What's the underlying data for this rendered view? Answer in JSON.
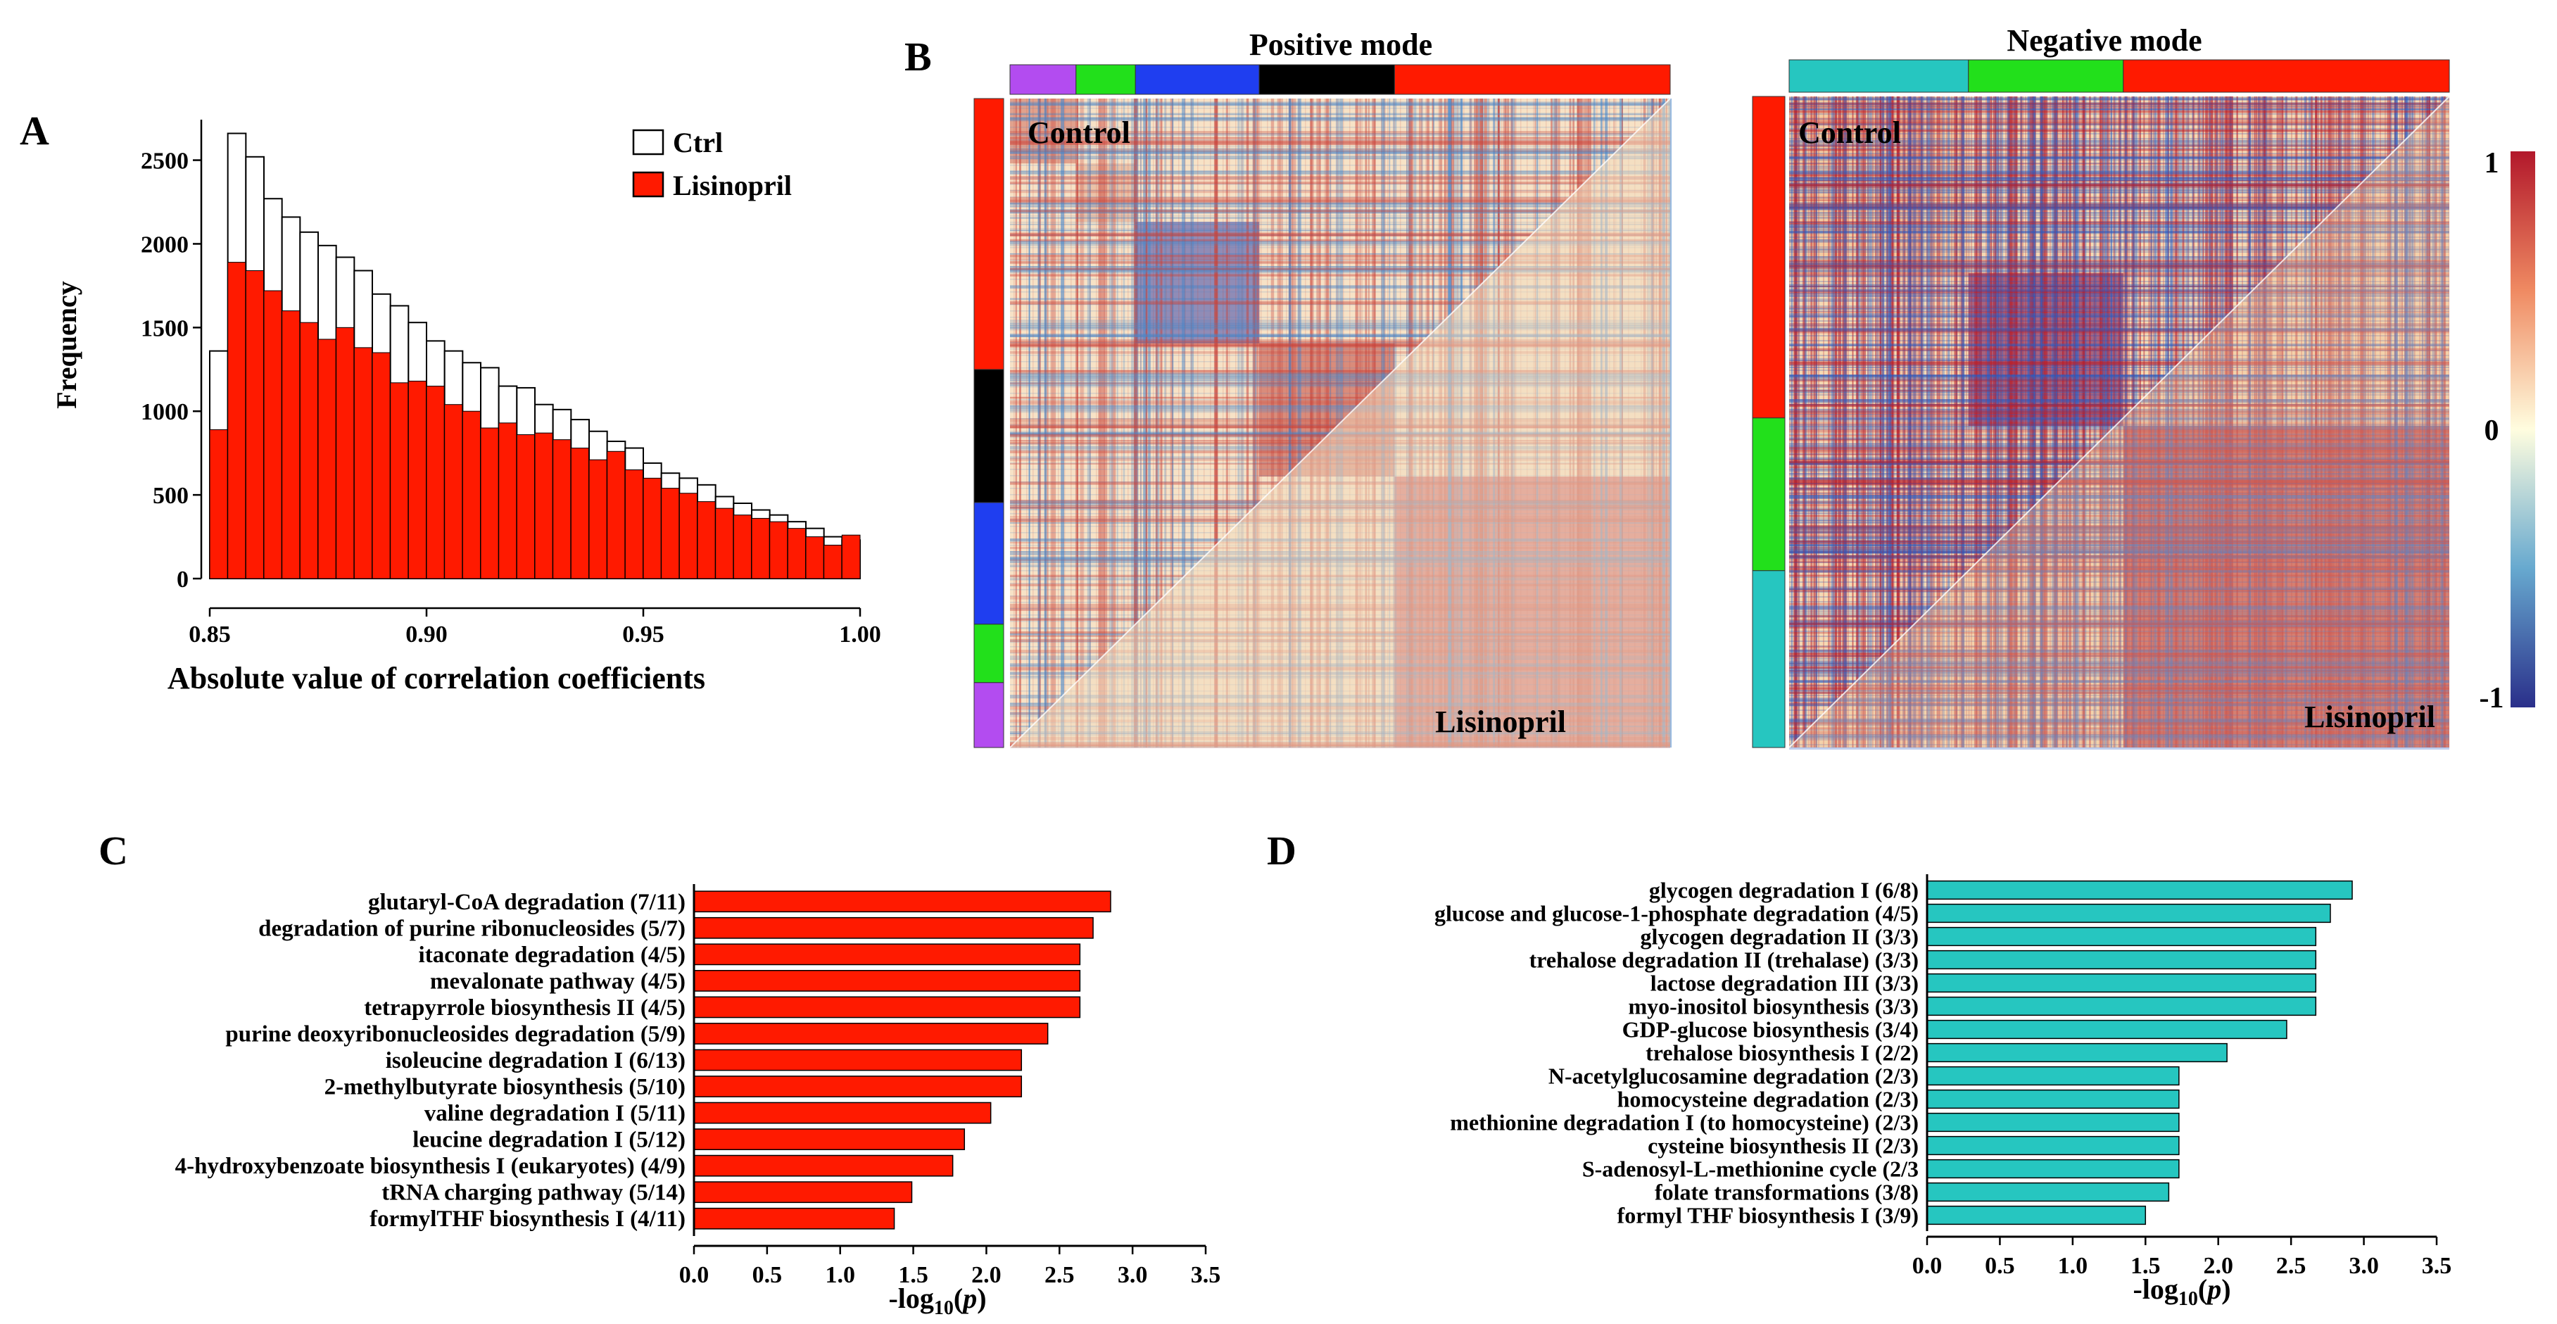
{
  "panel_labels": {
    "A": "A",
    "B": "B",
    "C": "C",
    "D": "D"
  },
  "colors": {
    "ctrl": "#ffffff",
    "lisinopril": "#ff1a00",
    "teal": "#26c6c0",
    "purple": "#b34cf0",
    "green": "#22e01b",
    "blue": "#1f3ef0",
    "black": "#000000",
    "red": "#ff1a00"
  },
  "chart_data": [
    {
      "id": "A",
      "type": "bar",
      "title": "",
      "xlabel": "Absolute value of correlation  coefficients",
      "ylabel": "Frequency",
      "xlim": [
        0.85,
        1.0
      ],
      "ylim": [
        0,
        2700
      ],
      "xticks": [
        "0.85",
        "0.90",
        "0.95",
        "1.00"
      ],
      "yticks": [
        "0",
        "500",
        "1000",
        "1500",
        "2000",
        "2500"
      ],
      "bin_start": 0.85,
      "bin_width": 0.005,
      "series": [
        {
          "name": "Ctrl",
          "values": [
            1360,
            2660,
            2520,
            2270,
            2160,
            2070,
            1990,
            1920,
            1840,
            1700,
            1630,
            1530,
            1420,
            1360,
            1290,
            1260,
            1150,
            1140,
            1040,
            1010,
            950,
            880,
            820,
            780,
            690,
            630,
            600,
            560,
            490,
            450,
            410,
            380,
            340,
            300,
            250,
            230
          ]
        },
        {
          "name": "Lisinopril",
          "values": [
            890,
            1890,
            1840,
            1720,
            1600,
            1530,
            1430,
            1500,
            1380,
            1350,
            1170,
            1180,
            1150,
            1040,
            1000,
            900,
            930,
            860,
            870,
            830,
            780,
            710,
            760,
            650,
            600,
            540,
            510,
            460,
            420,
            380,
            360,
            340,
            300,
            250,
            200,
            260
          ]
        }
      ],
      "legend": [
        "Ctrl",
        "Lisinopril"
      ]
    },
    {
      "id": "B",
      "type": "heatmap",
      "panels": [
        {
          "title": "Positive mode",
          "upper_label": "Control",
          "lower_label": "Lisinopril",
          "top_groups": [
            {
              "color": "purple",
              "size": 40
            },
            {
              "color": "green",
              "size": 36
            },
            {
              "color": "blue",
              "size": 75
            },
            {
              "color": "black",
              "size": 82
            },
            {
              "color": "red",
              "size": 167
            }
          ],
          "side_groups": [
            {
              "color": "red",
              "size": 167
            },
            {
              "color": "black",
              "size": 82
            },
            {
              "color": "blue",
              "size": 75
            },
            {
              "color": "green",
              "size": 36
            },
            {
              "color": "purple",
              "size": 40
            }
          ]
        },
        {
          "title": "Negative mode",
          "upper_label": "Control",
          "lower_label": "Lisinopril",
          "top_groups": [
            {
              "color": "teal",
              "size": 110
            },
            {
              "color": "green",
              "size": 95
            },
            {
              "color": "red",
              "size": 200
            }
          ],
          "side_groups": [
            {
              "color": "red",
              "size": 200
            },
            {
              "color": "green",
              "size": 95
            },
            {
              "color": "teal",
              "size": 110
            }
          ]
        }
      ],
      "colorbar": {
        "max": "1",
        "mid": "0",
        "min": "-1"
      }
    },
    {
      "id": "C",
      "type": "bar",
      "orientation": "horizontal",
      "xlabel": "-log10(p)",
      "xlim": [
        0,
        3.5
      ],
      "xticks": [
        "0.0",
        "0.5",
        "1.0",
        "1.5",
        "2.0",
        "2.5",
        "3.0",
        "3.5"
      ],
      "categories": [
        "glutaryl-CoA degradation (7/11)",
        "degradation of purine ribonucleosides (5/7)",
        "itaconate degradation (4/5)",
        "mevalonate pathway (4/5)",
        "tetrapyrrole biosynthesis II (4/5)",
        "purine deoxyribonucleosides degradation (5/9)",
        "isoleucine degradation I (6/13)",
        "2-methylbutyrate biosynthesis (5/10)",
        "valine degradation I (5/11)",
        "leucine degradation I (5/12)",
        "4-hydroxybenzoate biosynthesis I (eukaryotes) (4/9)",
        "tRNA charging pathway (5/14)",
        "formylTHF biosynthesis I (4/11)"
      ],
      "values": [
        2.85,
        2.73,
        2.64,
        2.64,
        2.64,
        2.42,
        2.24,
        2.24,
        2.03,
        1.85,
        1.77,
        1.49,
        1.37
      ]
    },
    {
      "id": "D",
      "type": "bar",
      "orientation": "horizontal",
      "xlabel": "-log10(p)",
      "xlim": [
        0,
        3.5
      ],
      "xticks": [
        "0.0",
        "0.5",
        "1.0",
        "1.5",
        "2.0",
        "2.5",
        "3.0",
        "3.5"
      ],
      "categories": [
        "glycogen degradation I (6/8)",
        "glucose and glucose-1-phosphate degradation (4/5)",
        "glycogen degradation II (3/3)",
        "trehalose degradation II (trehalase) (3/3)",
        "lactose degradation III (3/3)",
        "myo-inositol biosynthesis (3/3)",
        "GDP-glucose biosynthesis (3/4)",
        "trehalose biosynthesis I (2/2)",
        "N-acetylglucosamine degradation (2/3)",
        "homocysteine degradation (2/3)",
        "methionine degradation I (to homocysteine) (2/3)",
        "cysteine biosynthesis II (2/3)",
        "S-adenosyl-L-methionine cycle (2/3",
        "folate transformations (3/8)",
        "formyl THF biosynthesis I (3/9)"
      ],
      "values": [
        2.92,
        2.77,
        2.67,
        2.67,
        2.67,
        2.67,
        2.47,
        2.06,
        1.73,
        1.73,
        1.73,
        1.73,
        1.73,
        1.66,
        1.5
      ]
    }
  ]
}
